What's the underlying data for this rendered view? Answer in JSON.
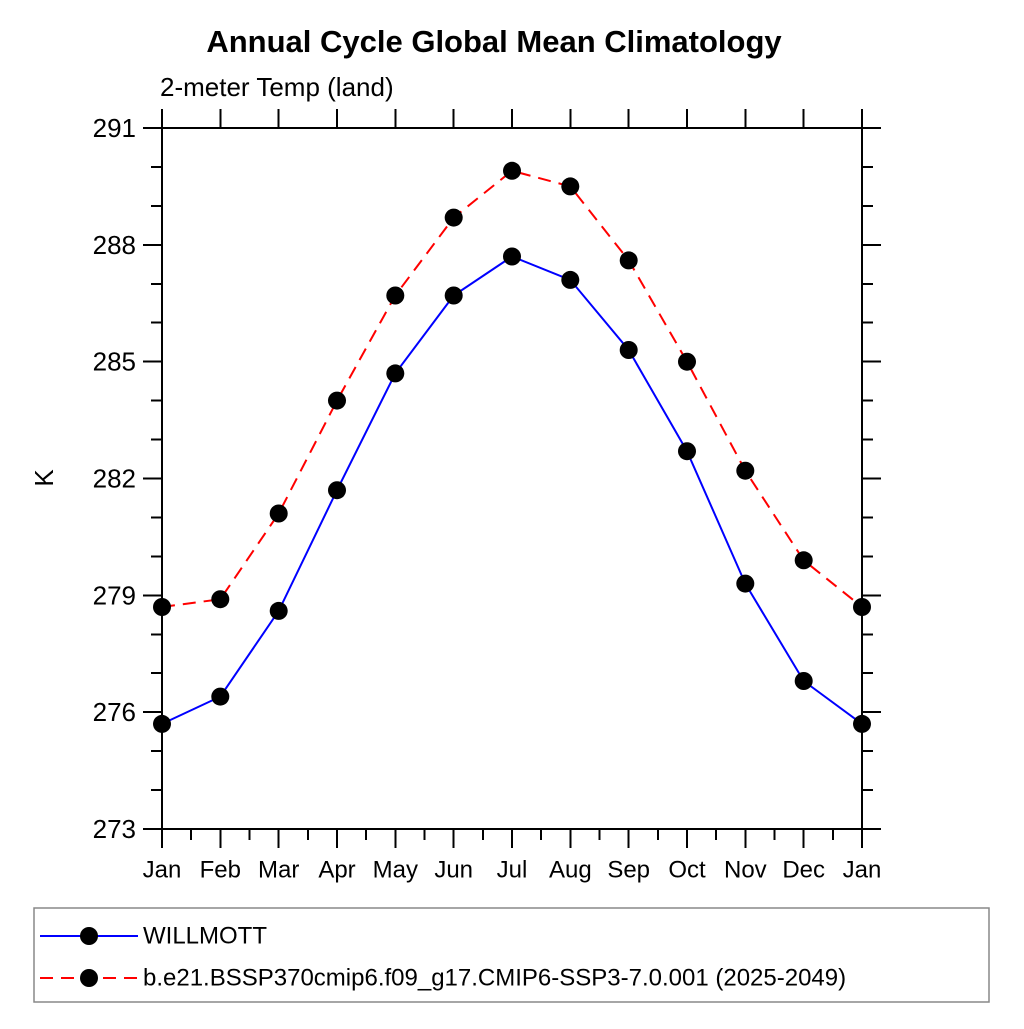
{
  "title": "Annual Cycle Global Mean Climatology",
  "subtitle": "2-meter Temp (land)",
  "ylabel": "K",
  "colors": {
    "obs_line": "#0000ff",
    "model_line": "#ff0000",
    "marker": "#000000",
    "axis": "#000000",
    "legend_border": "#888888"
  },
  "legend": {
    "entries": [
      {
        "label": "WILLMOTT"
      },
      {
        "label": "b.e21.BSSP370cmip6.f09_g17.CMIP6-SSP3-7.0.001 (2025-2049)"
      }
    ]
  },
  "chart_data": {
    "type": "line",
    "title": "Annual Cycle Global Mean Climatology",
    "subtitle": "2-meter Temp (land)",
    "xlabel": "",
    "ylabel": "K",
    "categories": [
      "Jan",
      "Feb",
      "Mar",
      "Apr",
      "May",
      "Jun",
      "Jul",
      "Aug",
      "Sep",
      "Oct",
      "Nov",
      "Dec",
      "Jan"
    ],
    "series": [
      {
        "name": "WILLMOTT",
        "color": "#0000ff",
        "line_style": "solid",
        "marker": "black-dot",
        "values": [
          275.7,
          276.4,
          278.6,
          281.7,
          284.7,
          286.7,
          287.7,
          287.1,
          285.3,
          282.7,
          279.3,
          276.8,
          275.7
        ]
      },
      {
        "name": "b.e21.BSSP370cmip6.f09_g17.CMIP6-SSP3-7.0.001 (2025-2049)",
        "color": "#ff0000",
        "line_style": "dashed",
        "marker": "black-dot",
        "values": [
          278.7,
          278.9,
          281.1,
          284.0,
          286.7,
          288.7,
          289.9,
          289.5,
          287.6,
          285.0,
          282.2,
          279.9,
          278.7
        ]
      }
    ],
    "ylim": [
      273,
      291
    ],
    "ytick_major_step": 3,
    "ytick_minor_step": 1,
    "ytick_labels": [
      "273",
      "276",
      "279",
      "282",
      "285",
      "288",
      "291"
    ],
    "grid": "off",
    "tick_direction": "out",
    "legend_position": "bottom"
  }
}
